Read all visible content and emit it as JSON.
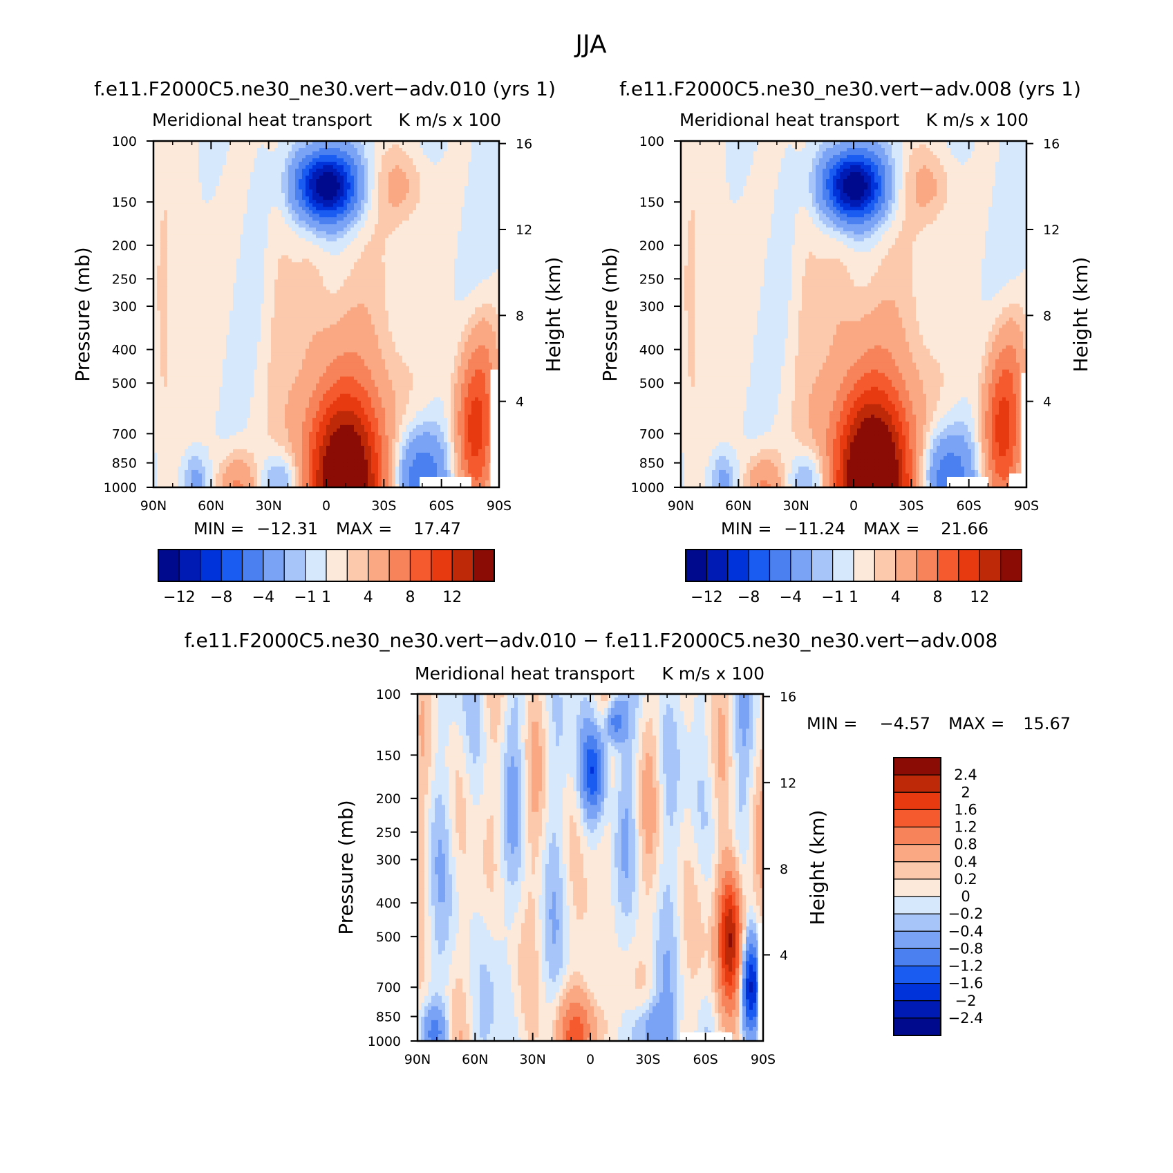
{
  "figure": {
    "title": "JJA",
    "colors": {
      "blues": [
        "#000a8c",
        "#001ab4",
        "#0033d9",
        "#1a5cf2",
        "#4a80f0",
        "#7aa3f5",
        "#a8c5fa",
        "#d6e8fb"
      ],
      "reds": [
        "#fde9d9",
        "#fcc9ad",
        "#f9a883",
        "#f7835a",
        "#f55a2e",
        "#e83a10",
        "#be2a08",
        "#8a0c04"
      ]
    }
  },
  "chart_data": [
    {
      "type": "heatmap",
      "panel": "left",
      "title": "f.e11.F2000C5.ne30_ne30.vert−adv.010 (yrs 1)",
      "subtitle_left": "Meridional heat transport",
      "subtitle_right": "K m/s x 100",
      "ylabel": "Pressure (mb)",
      "ylabel_right": "Height (km)",
      "x_ticks": [
        "90N",
        "60N",
        "30N",
        "0",
        "30S",
        "60S",
        "90S"
      ],
      "y_ticks": [
        "100",
        "150",
        "200",
        "250",
        "300",
        "400",
        "500",
        "700",
        "850",
        "1000"
      ],
      "y_right_ticks": [
        "16",
        "12",
        "8",
        "4"
      ],
      "ylim": [
        1000,
        100
      ],
      "min_label": "MIN =",
      "min_value": "−12.31",
      "max_label": "MAX =",
      "max_value": "17.47",
      "colorbar": {
        "orientation": "horizontal",
        "levels": [
          -12,
          -10,
          -8,
          -6,
          -4,
          -2,
          -1,
          0,
          1,
          2,
          4,
          6,
          8,
          10,
          12
        ],
        "tick_labels": [
          "−12",
          "−8",
          "−4",
          "−1",
          "1",
          "4",
          "8",
          "12"
        ]
      },
      "features": [
        {
          "name": "upper tropical negative",
          "lat": 0,
          "p": 200,
          "peak": -12.31
        },
        {
          "name": "upper southern positive",
          "lat": -45,
          "p": 200,
          "peak": 2
        },
        {
          "name": "tropical low-level positive",
          "lat": -10,
          "p": 950,
          "peak": 12
        },
        {
          "name": "southern low-level negative",
          "lat": -45,
          "p": 950,
          "peak": -6
        },
        {
          "name": "antarctic low-level positive",
          "lat": -82,
          "p": 900,
          "peak": 8
        }
      ]
    },
    {
      "type": "heatmap",
      "panel": "right",
      "title": "f.e11.F2000C5.ne30_ne30.vert−adv.008 (yrs 1)",
      "subtitle_left": "Meridional heat transport",
      "subtitle_right": "K m/s x 100",
      "ylabel": "Pressure (mb)",
      "ylabel_right": "Height (km)",
      "x_ticks": [
        "90N",
        "60N",
        "30N",
        "0",
        "30S",
        "60S",
        "90S"
      ],
      "y_ticks": [
        "100",
        "150",
        "200",
        "250",
        "300",
        "400",
        "500",
        "700",
        "850",
        "1000"
      ],
      "y_right_ticks": [
        "16",
        "12",
        "8",
        "4"
      ],
      "ylim": [
        1000,
        100
      ],
      "min_label": "MIN =",
      "min_value": "−11.24",
      "max_label": "MAX =",
      "max_value": "21.66",
      "colorbar": {
        "orientation": "horizontal",
        "levels": [
          -12,
          -10,
          -8,
          -6,
          -4,
          -2,
          -1,
          0,
          1,
          2,
          4,
          6,
          8,
          10,
          12
        ],
        "tick_labels": [
          "−12",
          "−8",
          "−4",
          "−1",
          "1",
          "4",
          "8",
          "12"
        ]
      },
      "features": [
        {
          "name": "upper tropical negative",
          "lat": 0,
          "p": 200,
          "peak": -11.24
        },
        {
          "name": "upper southern positive",
          "lat": -45,
          "p": 200,
          "peak": 2
        },
        {
          "name": "tropical low-level positive",
          "lat": -10,
          "p": 950,
          "peak": 14
        },
        {
          "name": "southern low-level negative",
          "lat": -45,
          "p": 950,
          "peak": -6
        },
        {
          "name": "antarctic low-level positive",
          "lat": -82,
          "p": 900,
          "peak": 8
        }
      ]
    },
    {
      "type": "heatmap",
      "panel": "difference",
      "title": "f.e11.F2000C5.ne30_ne30.vert−adv.010 − f.e11.F2000C5.ne30_ne30.vert−adv.008",
      "subtitle_left": "Meridional heat transport",
      "subtitle_right": "K m/s x 100",
      "ylabel": "Pressure (mb)",
      "ylabel_right": "Height (km)",
      "x_ticks": [
        "90N",
        "60N",
        "30N",
        "0",
        "30S",
        "60S",
        "90S"
      ],
      "y_ticks": [
        "100",
        "150",
        "200",
        "250",
        "300",
        "400",
        "500",
        "700",
        "850",
        "1000"
      ],
      "y_right_ticks": [
        "16",
        "12",
        "8",
        "4"
      ],
      "ylim": [
        1000,
        100
      ],
      "min_label": "MIN =",
      "min_value": "−4.57",
      "max_label": "MAX =",
      "max_value": "15.67",
      "colorbar": {
        "orientation": "vertical",
        "levels": [
          -2.4,
          -2,
          -1.6,
          -1.2,
          -0.8,
          -0.4,
          -0.2,
          0,
          0.2,
          0.4,
          0.8,
          1.2,
          1.6,
          2,
          2.4
        ],
        "tick_labels": [
          "2.4",
          "2",
          "1.6",
          "1.2",
          "0.8",
          "0.4",
          "0.2",
          "0",
          "−0.2",
          "−0.4",
          "−0.8",
          "−1.2",
          "−1.6",
          "−2",
          "−2.4"
        ]
      },
      "features": [
        {
          "name": "antarctic positive",
          "lat": -75,
          "p": 750,
          "peak": 2.4
        },
        {
          "name": "antarctic negative",
          "lat": -85,
          "p": 900,
          "peak": -2
        },
        {
          "name": "tropical upper negative",
          "lat": 5,
          "p": 300,
          "peak": -1.2
        }
      ]
    }
  ]
}
